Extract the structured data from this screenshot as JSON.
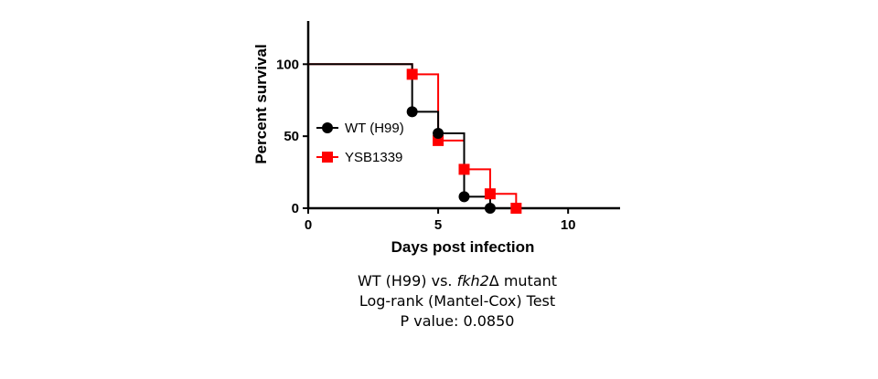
{
  "chart_data": {
    "type": "line",
    "xlabel": "Days post infection",
    "ylabel": "Percent survival",
    "xlim": [
      0,
      12
    ],
    "ylim": [
      0,
      130
    ],
    "x_ticks": [
      "0",
      "5",
      "10"
    ],
    "y_ticks": [
      "0",
      "50",
      "100"
    ],
    "grid": false,
    "legend_placement": "center-left",
    "series": [
      {
        "name": "WT (H99)",
        "color": "#000000",
        "marker": "circle",
        "steps": [
          [
            0,
            100
          ],
          [
            4,
            100
          ],
          [
            4,
            67
          ],
          [
            5,
            67
          ],
          [
            5,
            52
          ],
          [
            6,
            52
          ],
          [
            6,
            8
          ],
          [
            7,
            8
          ],
          [
            7,
            0
          ],
          [
            12,
            0
          ]
        ],
        "markers": [
          [
            4,
            67
          ],
          [
            5,
            52
          ],
          [
            6,
            8
          ],
          [
            7,
            0
          ]
        ]
      },
      {
        "name": "YSB1339",
        "color": "#ff0000",
        "marker": "square",
        "steps": [
          [
            0,
            100
          ],
          [
            4,
            100
          ],
          [
            4,
            93
          ],
          [
            5,
            93
          ],
          [
            5,
            47
          ],
          [
            6,
            47
          ],
          [
            6,
            27
          ],
          [
            7,
            27
          ],
          [
            7,
            10
          ],
          [
            8,
            10
          ],
          [
            8,
            0
          ],
          [
            12,
            0
          ]
        ],
        "markers": [
          [
            4,
            93
          ],
          [
            5,
            47
          ],
          [
            6,
            27
          ],
          [
            7,
            10
          ],
          [
            8,
            0
          ]
        ]
      }
    ]
  },
  "caption": {
    "line1_prefix": "WT (H99) vs. ",
    "line1_italic": "fkh2",
    "line1_suffix": "Δ mutant",
    "line2": "Log-rank (Mantel-Cox) Test",
    "line3": "P value: 0.0850"
  }
}
